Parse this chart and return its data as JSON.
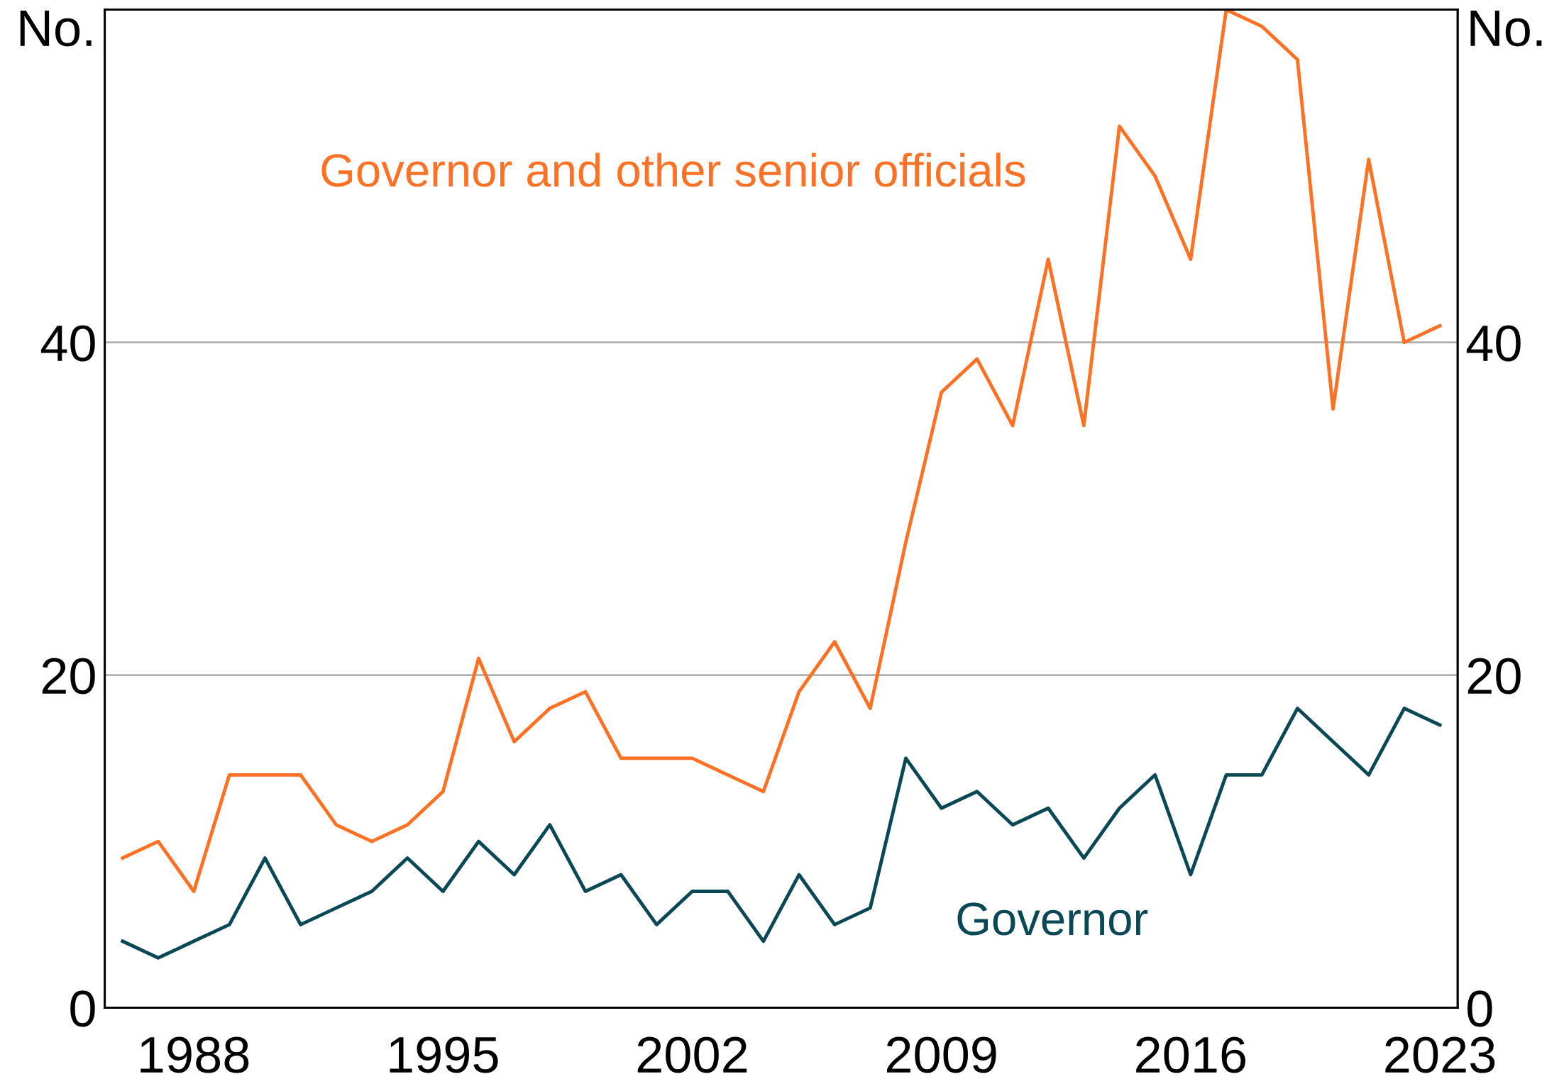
{
  "chart_data": {
    "type": "line",
    "x": [
      1986,
      1987,
      1988,
      1989,
      1990,
      1991,
      1992,
      1993,
      1994,
      1995,
      1996,
      1997,
      1998,
      1999,
      2000,
      2001,
      2002,
      2003,
      2004,
      2005,
      2006,
      2007,
      2008,
      2009,
      2010,
      2011,
      2012,
      2013,
      2014,
      2015,
      2016,
      2017,
      2018,
      2019,
      2020,
      2021,
      2022,
      2023
    ],
    "series": [
      {
        "name": "Governor and other senior officials",
        "color": "#ff7124",
        "values": [
          9,
          10,
          7,
          14,
          14,
          14,
          11,
          10,
          11,
          13,
          21,
          16,
          18,
          19,
          15,
          15,
          15,
          14,
          13,
          19,
          22,
          18,
          28,
          37,
          39,
          35,
          45,
          35,
          53,
          50,
          45,
          60,
          59,
          57,
          36,
          51,
          40,
          41
        ]
      },
      {
        "name": "Governor",
        "color": "#0b4855",
        "values": [
          4,
          3,
          4,
          5,
          9,
          5,
          6,
          7,
          9,
          7,
          10,
          8,
          11,
          7,
          8,
          5,
          7,
          7,
          4,
          8,
          5,
          6,
          15,
          12,
          13,
          11,
          12,
          9,
          12,
          14,
          8,
          14,
          14,
          18,
          16,
          14,
          18,
          17
        ]
      }
    ],
    "ylabel": "No.",
    "y2label": "No.",
    "xlim": [
      1985.5,
      2023.5
    ],
    "xticks": [
      1988,
      1995,
      2002,
      2009,
      2016,
      2023
    ],
    "ylim": [
      0,
      60
    ],
    "yticks": [
      0,
      20,
      40
    ],
    "y2lim": [
      0,
      60
    ],
    "y2ticks": [
      0,
      20,
      40
    ],
    "grid": "y",
    "legend": false,
    "marker": "none",
    "line_style": "solid"
  }
}
